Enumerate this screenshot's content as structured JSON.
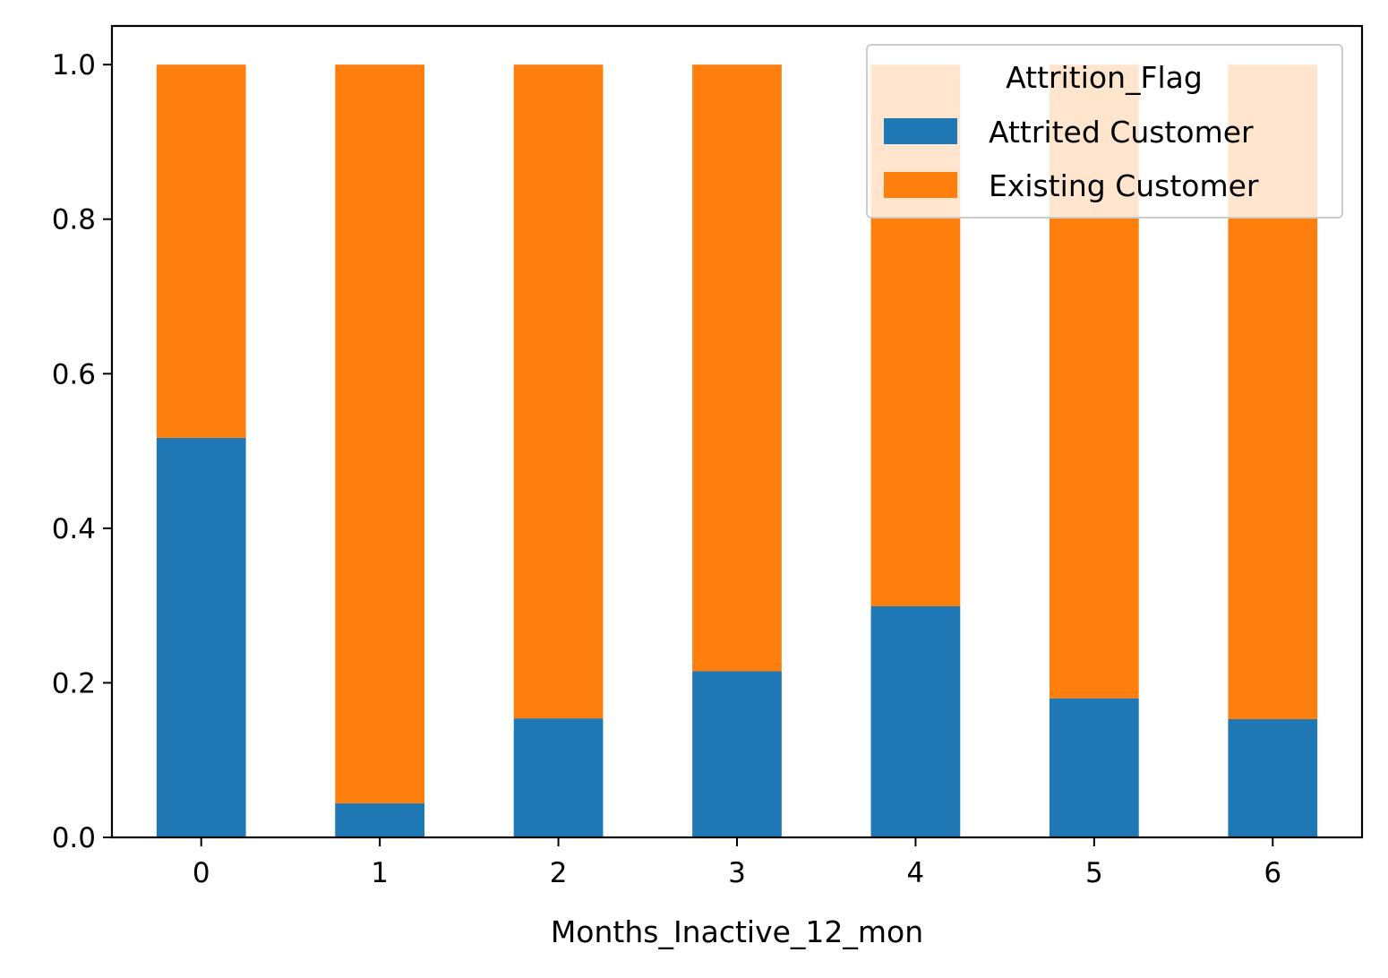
{
  "chart_data": {
    "type": "bar",
    "stacked": true,
    "categories": [
      "0",
      "1",
      "2",
      "3",
      "4",
      "5",
      "6"
    ],
    "series": [
      {
        "name": "Attrited Customer",
        "color": "#1f77b4",
        "values": [
          0.517,
          0.044,
          0.154,
          0.215,
          0.299,
          0.18,
          0.153
        ]
      },
      {
        "name": "Existing Customer",
        "color": "#ff7f0e",
        "values": [
          0.483,
          0.956,
          0.846,
          0.785,
          0.701,
          0.82,
          0.847
        ]
      }
    ],
    "xlabel": "Months_Inactive_12_mon",
    "ylabel": "",
    "ylim": [
      0,
      1.05
    ],
    "yticks": [
      "0.0",
      "0.2",
      "0.4",
      "0.6",
      "0.8",
      "1.0"
    ],
    "ytick_values": [
      0,
      0.2,
      0.4,
      0.6,
      0.8,
      1.0
    ],
    "grid": false,
    "legend": {
      "title": "Attrition_Flag",
      "placement": "top-right"
    }
  }
}
